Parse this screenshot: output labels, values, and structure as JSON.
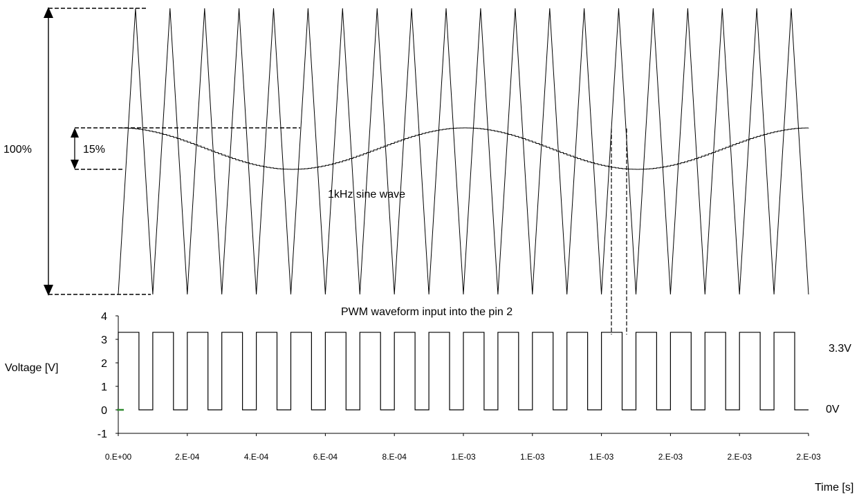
{
  "chart_data": [
    {
      "type": "line",
      "description_labels": {
        "amplitude_full": "100%",
        "amplitude_sine": "15%",
        "sine_label": "1kHz sine wave",
        "pwm_label": "PWM waveform input into the pin 2"
      },
      "triangle_carrier": {
        "periods": 20,
        "t_start": 0,
        "t_end": 0.002,
        "amplitude_percent": 100
      },
      "sine_reference": {
        "frequency_hz": 1000,
        "amplitude_percent": 15,
        "steps": 200
      }
    },
    {
      "type": "line",
      "ylabel": "Voltage [V]",
      "xlabel": "Time [s]",
      "ylim": [
        -1,
        4
      ],
      "xlim": [
        0,
        0.002
      ],
      "yticks": [
        "4",
        "3",
        "2",
        "1",
        "0",
        "-1"
      ],
      "xticks": [
        "0.E+00",
        "2.E-04",
        "4.E-04",
        "6.E-04",
        "8.E-04",
        "1.E-03",
        "1.E-03",
        "1.E-03",
        "2.E-03",
        "2.E-03",
        "2.E-03"
      ],
      "level_labels": {
        "high": "3.3V",
        "low": "0V"
      },
      "series": [
        {
          "high_v": 3.3,
          "low_v": 0,
          "period_s": 0.0001,
          "pulses": 20,
          "high_time_s": [
            6e-05,
            6e-05,
            6e-05,
            6e-05,
            6e-05,
            6e-05,
            6e-05,
            6e-05,
            6e-05,
            6e-05,
            6e-05,
            6e-05,
            6e-05,
            6e-05,
            6e-05,
            6e-05,
            6e-05,
            6e-05,
            6e-05,
            6e-05
          ]
        }
      ],
      "colors": {
        "line": "#000000",
        "start_marker": "#2e8b2e"
      }
    }
  ]
}
